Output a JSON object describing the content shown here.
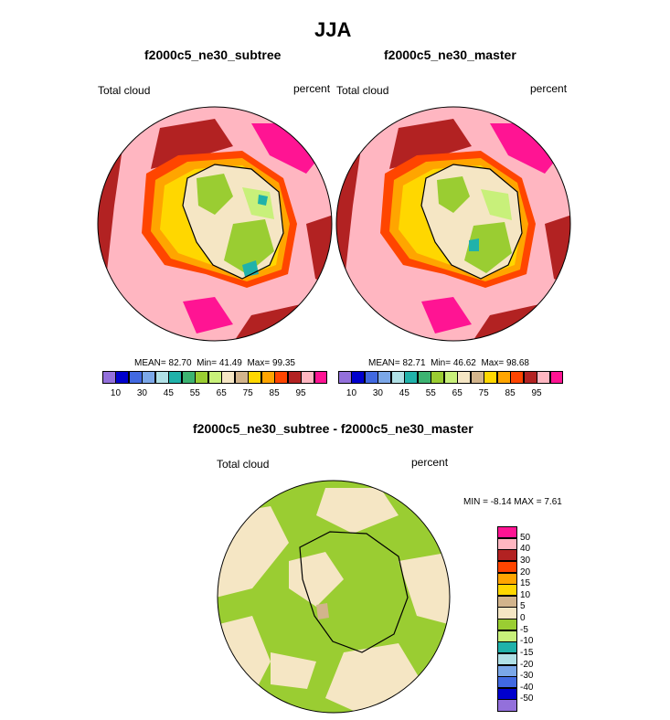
{
  "page": {
    "title": "JJA"
  },
  "panels": [
    {
      "title": "f2000c5_ne30_subtree",
      "left_label": "Total cloud",
      "right_label": "percent",
      "stats": {
        "mean_label": "MEAN=",
        "mean": "82.70",
        "min_label": "Min=",
        "min": "41.49",
        "max_label": "Max=",
        "max": "99.35"
      }
    },
    {
      "title": "f2000c5_ne30_master",
      "left_label": "Total cloud",
      "right_label": "percent",
      "stats": {
        "mean_label": "MEAN=",
        "mean": "82.71",
        "min_label": "Min=",
        "min": "46.62",
        "max_label": "Max=",
        "max": "98.68"
      }
    }
  ],
  "abs_colorbar": {
    "colors": [
      "#9370db",
      "#0000cd",
      "#4169e1",
      "#7ba7e8",
      "#b0e0e6",
      "#20b2aa",
      "#3cb371",
      "#9acd32",
      "#c8f07a",
      "#f5e6c4",
      "#d2b48c",
      "#ffd700",
      "#ffa500",
      "#ff4500",
      "#b22222",
      "#ffb6c1",
      "#ff1493"
    ],
    "tick_labels": [
      "10",
      "30",
      "45",
      "55",
      "65",
      "75",
      "85",
      "95"
    ]
  },
  "diff_panel": {
    "title": "f2000c5_ne30_subtree - f2000c5_ne30_master",
    "left_label": "Total cloud",
    "right_label": "percent",
    "minmax_label": "MIN =  -8.14 MAX =   7.61"
  },
  "diff_colorbar": {
    "colors": [
      "#ff1493",
      "#ffb6c1",
      "#b22222",
      "#ff4500",
      "#ffa500",
      "#ffd700",
      "#d2b48c",
      "#f5e6c4",
      "#9acd32",
      "#c8f07a",
      "#20b2aa",
      "#b0e0e6",
      "#7ba7e8",
      "#4169e1",
      "#0000cd",
      "#9370db"
    ],
    "tick_labels": [
      "50",
      "40",
      "30",
      "20",
      "15",
      "10",
      "5",
      "0",
      "-5",
      "-10",
      "-15",
      "-20",
      "-30",
      "-40",
      "-50"
    ]
  },
  "map_colors": {
    "pink": "#ffb6c1",
    "magenta": "#ff1493",
    "darkred": "#b22222",
    "orangered": "#ff4500",
    "orange": "#ffa500",
    "gold": "#ffd700",
    "tan": "#d2b48c",
    "wheat": "#f5e6c4",
    "green": "#9acd32",
    "lightgreen": "#c8f07a",
    "teal": "#20b2aa",
    "coast": "#000000"
  }
}
